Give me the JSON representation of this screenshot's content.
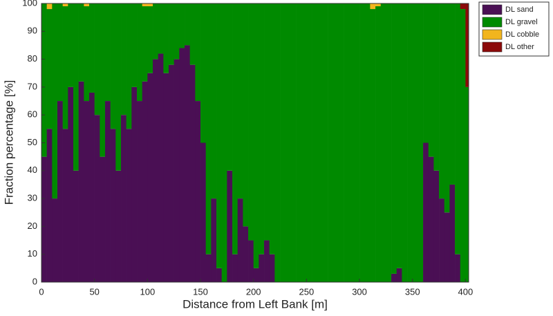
{
  "chart_data": {
    "type": "stacked_bar",
    "x_label": "Distance from Left Bank [m]",
    "y_label": "Fraction percentage [%]",
    "x": [
      0,
      5,
      10,
      15,
      20,
      25,
      30,
      35,
      40,
      45,
      50,
      55,
      60,
      65,
      70,
      75,
      80,
      85,
      90,
      95,
      100,
      105,
      110,
      115,
      120,
      125,
      130,
      135,
      140,
      145,
      150,
      155,
      160,
      165,
      170,
      175,
      180,
      185,
      190,
      195,
      200,
      205,
      210,
      215,
      220,
      225,
      230,
      235,
      240,
      245,
      250,
      255,
      260,
      265,
      270,
      275,
      280,
      285,
      290,
      295,
      300,
      305,
      310,
      315,
      320,
      325,
      330,
      335,
      340,
      345,
      350,
      355,
      360,
      365,
      370,
      375,
      380,
      385,
      390,
      395,
      400
    ],
    "bar_width": 5,
    "series": [
      {
        "name": "DL sand",
        "color": "#4a0f54",
        "values": [
          45,
          55,
          30,
          65,
          55,
          70,
          40,
          72,
          65,
          68,
          60,
          45,
          65,
          55,
          40,
          60,
          55,
          70,
          65,
          72,
          75,
          80,
          82,
          75,
          78,
          80,
          84,
          85,
          78,
          65,
          50,
          10,
          30,
          5,
          0,
          40,
          10,
          30,
          20,
          15,
          5,
          10,
          15,
          10,
          0,
          0,
          0,
          0,
          0,
          0,
          0,
          0,
          0,
          0,
          0,
          0,
          0,
          0,
          0,
          0,
          0,
          0,
          0,
          0,
          0,
          0,
          3,
          5,
          0,
          0,
          0,
          0,
          50,
          45,
          40,
          30,
          25,
          35,
          10,
          0,
          0
        ]
      },
      {
        "name": "DL gravel",
        "color": "#008a00",
        "values": [
          55,
          43,
          70,
          35,
          44,
          30,
          60,
          28,
          34,
          32,
          40,
          55,
          35,
          45,
          60,
          40,
          45,
          30,
          35,
          27,
          24,
          20,
          18,
          25,
          22,
          20,
          16,
          15,
          22,
          35,
          50,
          90,
          70,
          95,
          100,
          60,
          90,
          70,
          80,
          85,
          95,
          90,
          85,
          90,
          100,
          100,
          100,
          100,
          100,
          100,
          100,
          100,
          100,
          100,
          100,
          100,
          100,
          100,
          100,
          100,
          100,
          100,
          98,
          99,
          100,
          100,
          97,
          95,
          100,
          100,
          100,
          100,
          50,
          55,
          60,
          70,
          75,
          65,
          90,
          98,
          70
        ]
      },
      {
        "name": "DL cobble",
        "color": "#f2b51e",
        "values": [
          0,
          2,
          0,
          0,
          1,
          0,
          0,
          0,
          1,
          0,
          0,
          0,
          0,
          0,
          0,
          0,
          0,
          0,
          0,
          1,
          1,
          0,
          0,
          0,
          0,
          0,
          0,
          0,
          0,
          0,
          0,
          0,
          0,
          0,
          0,
          0,
          0,
          0,
          0,
          0,
          0,
          0,
          0,
          0,
          0,
          0,
          0,
          0,
          0,
          0,
          0,
          0,
          0,
          0,
          0,
          0,
          0,
          0,
          0,
          0,
          0,
          0,
          2,
          1,
          0,
          0,
          0,
          0,
          0,
          0,
          0,
          0,
          0,
          0,
          0,
          0,
          0,
          0,
          0,
          0,
          0
        ]
      },
      {
        "name": "DL other",
        "color": "#8b0a0a",
        "values": [
          0,
          0,
          0,
          0,
          0,
          0,
          0,
          0,
          0,
          0,
          0,
          0,
          0,
          0,
          0,
          0,
          0,
          0,
          0,
          0,
          0,
          0,
          0,
          0,
          0,
          0,
          0,
          0,
          0,
          0,
          0,
          0,
          0,
          0,
          0,
          0,
          0,
          0,
          0,
          0,
          0,
          0,
          0,
          0,
          0,
          0,
          0,
          0,
          0,
          0,
          0,
          0,
          0,
          0,
          0,
          0,
          0,
          0,
          0,
          0,
          0,
          0,
          0,
          0,
          0,
          0,
          0,
          0,
          0,
          0,
          0,
          0,
          0,
          0,
          0,
          0,
          0,
          0,
          0,
          2,
          30
        ]
      }
    ],
    "xlim": [
      0,
      403
    ],
    "ylim": [
      0,
      100
    ],
    "xticks": [
      0,
      50,
      100,
      150,
      200,
      250,
      300,
      350,
      400
    ],
    "yticks": [
      0,
      10,
      20,
      30,
      40,
      50,
      60,
      70,
      80,
      90,
      100
    ],
    "legend": "outside-top-right"
  }
}
